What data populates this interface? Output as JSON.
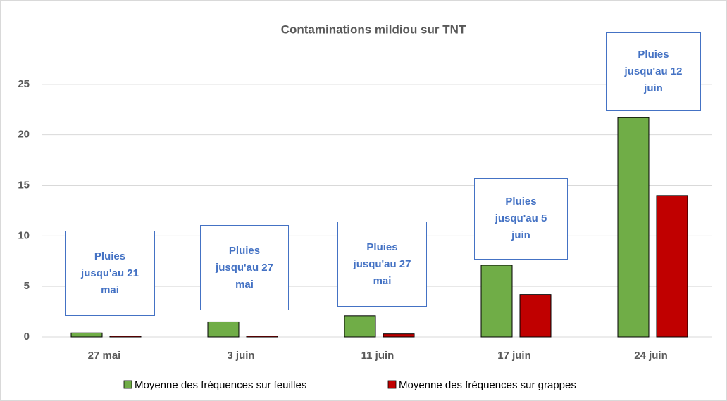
{
  "chart_data": {
    "type": "bar",
    "title": "Contaminations mildiou sur TNT",
    "categories": [
      "27 mai",
      "3 juin",
      "11 juin",
      "17 juin",
      "24 juin"
    ],
    "series": [
      {
        "name": "Moyenne des fréquences sur feuilles",
        "color": "#70ad47",
        "values": [
          0.4,
          1.5,
          2.1,
          7.1,
          21.7
        ]
      },
      {
        "name": "Moyenne des fréquences sur grappes",
        "color": "#c00000",
        "values": [
          0.1,
          0.1,
          0.3,
          4.2,
          14.0
        ]
      }
    ],
    "ylim": [
      0,
      30
    ],
    "yticks": [
      0,
      5,
      10,
      15,
      20,
      25
    ],
    "grid": true,
    "legend": "bottom",
    "annotations": [
      "Pluies jusqu'au 21 mai",
      "Pluies jusqu'au 27 mai",
      "Pluies jusqu'au 27 mai",
      "Pluies jusqu'au 5 juin",
      "Pluies jusqu'au 12 juin"
    ]
  }
}
